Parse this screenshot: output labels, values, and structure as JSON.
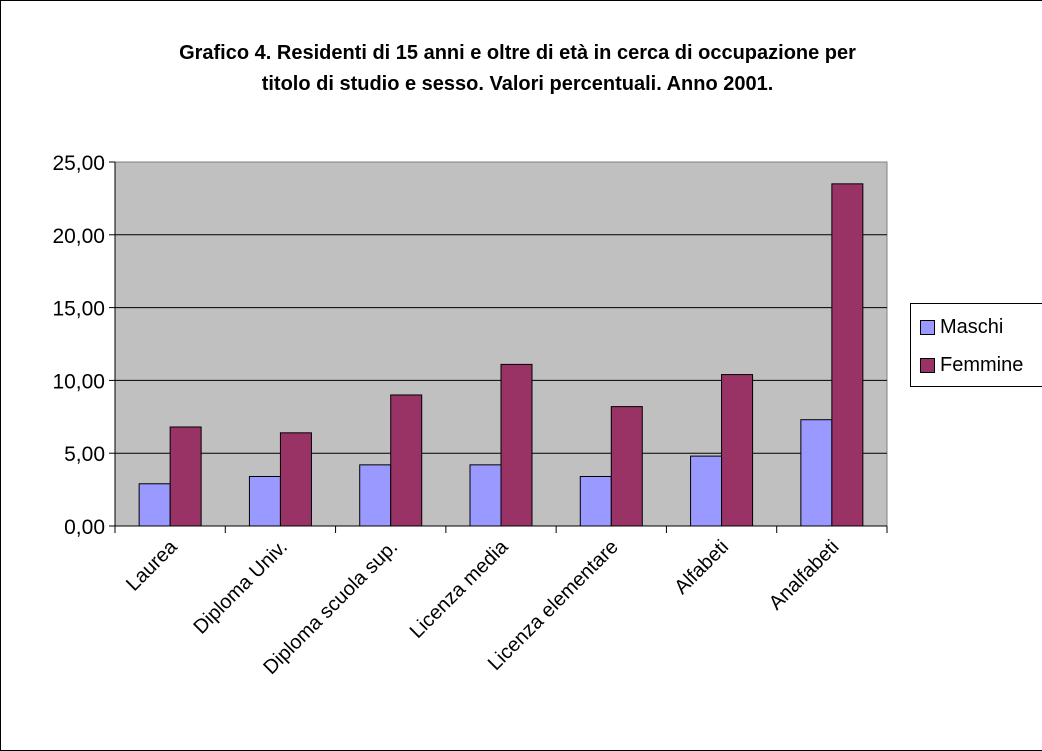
{
  "chart_data": {
    "type": "bar",
    "title_lines": [
      "Grafico 4. Residenti di 15 anni e oltre di età in cerca di occupazione per",
      "titolo di studio e sesso. Valori percentuali. Anno 2001."
    ],
    "categories": [
      "Laurea",
      "Diploma Univ.",
      "Diploma scuola sup.",
      "Licenza media",
      "Licenza elementare",
      "Alfabeti",
      "Analfabeti"
    ],
    "series": [
      {
        "name": "Maschi",
        "values": [
          2.9,
          3.4,
          4.2,
          4.2,
          3.4,
          4.8,
          7.3
        ]
      },
      {
        "name": "Femmine",
        "values": [
          6.8,
          6.4,
          9.0,
          11.1,
          8.2,
          10.4,
          23.5
        ]
      }
    ],
    "y_ticks": [
      "0,00",
      "5,00",
      "10,00",
      "15,00",
      "20,00",
      "25,00"
    ],
    "ylim": [
      0,
      25
    ],
    "grid": true,
    "legend_position": "right",
    "colors": {
      "plot_background": "#c0c0c0",
      "maschi": "#9999ff",
      "femmine": "#993366"
    }
  }
}
